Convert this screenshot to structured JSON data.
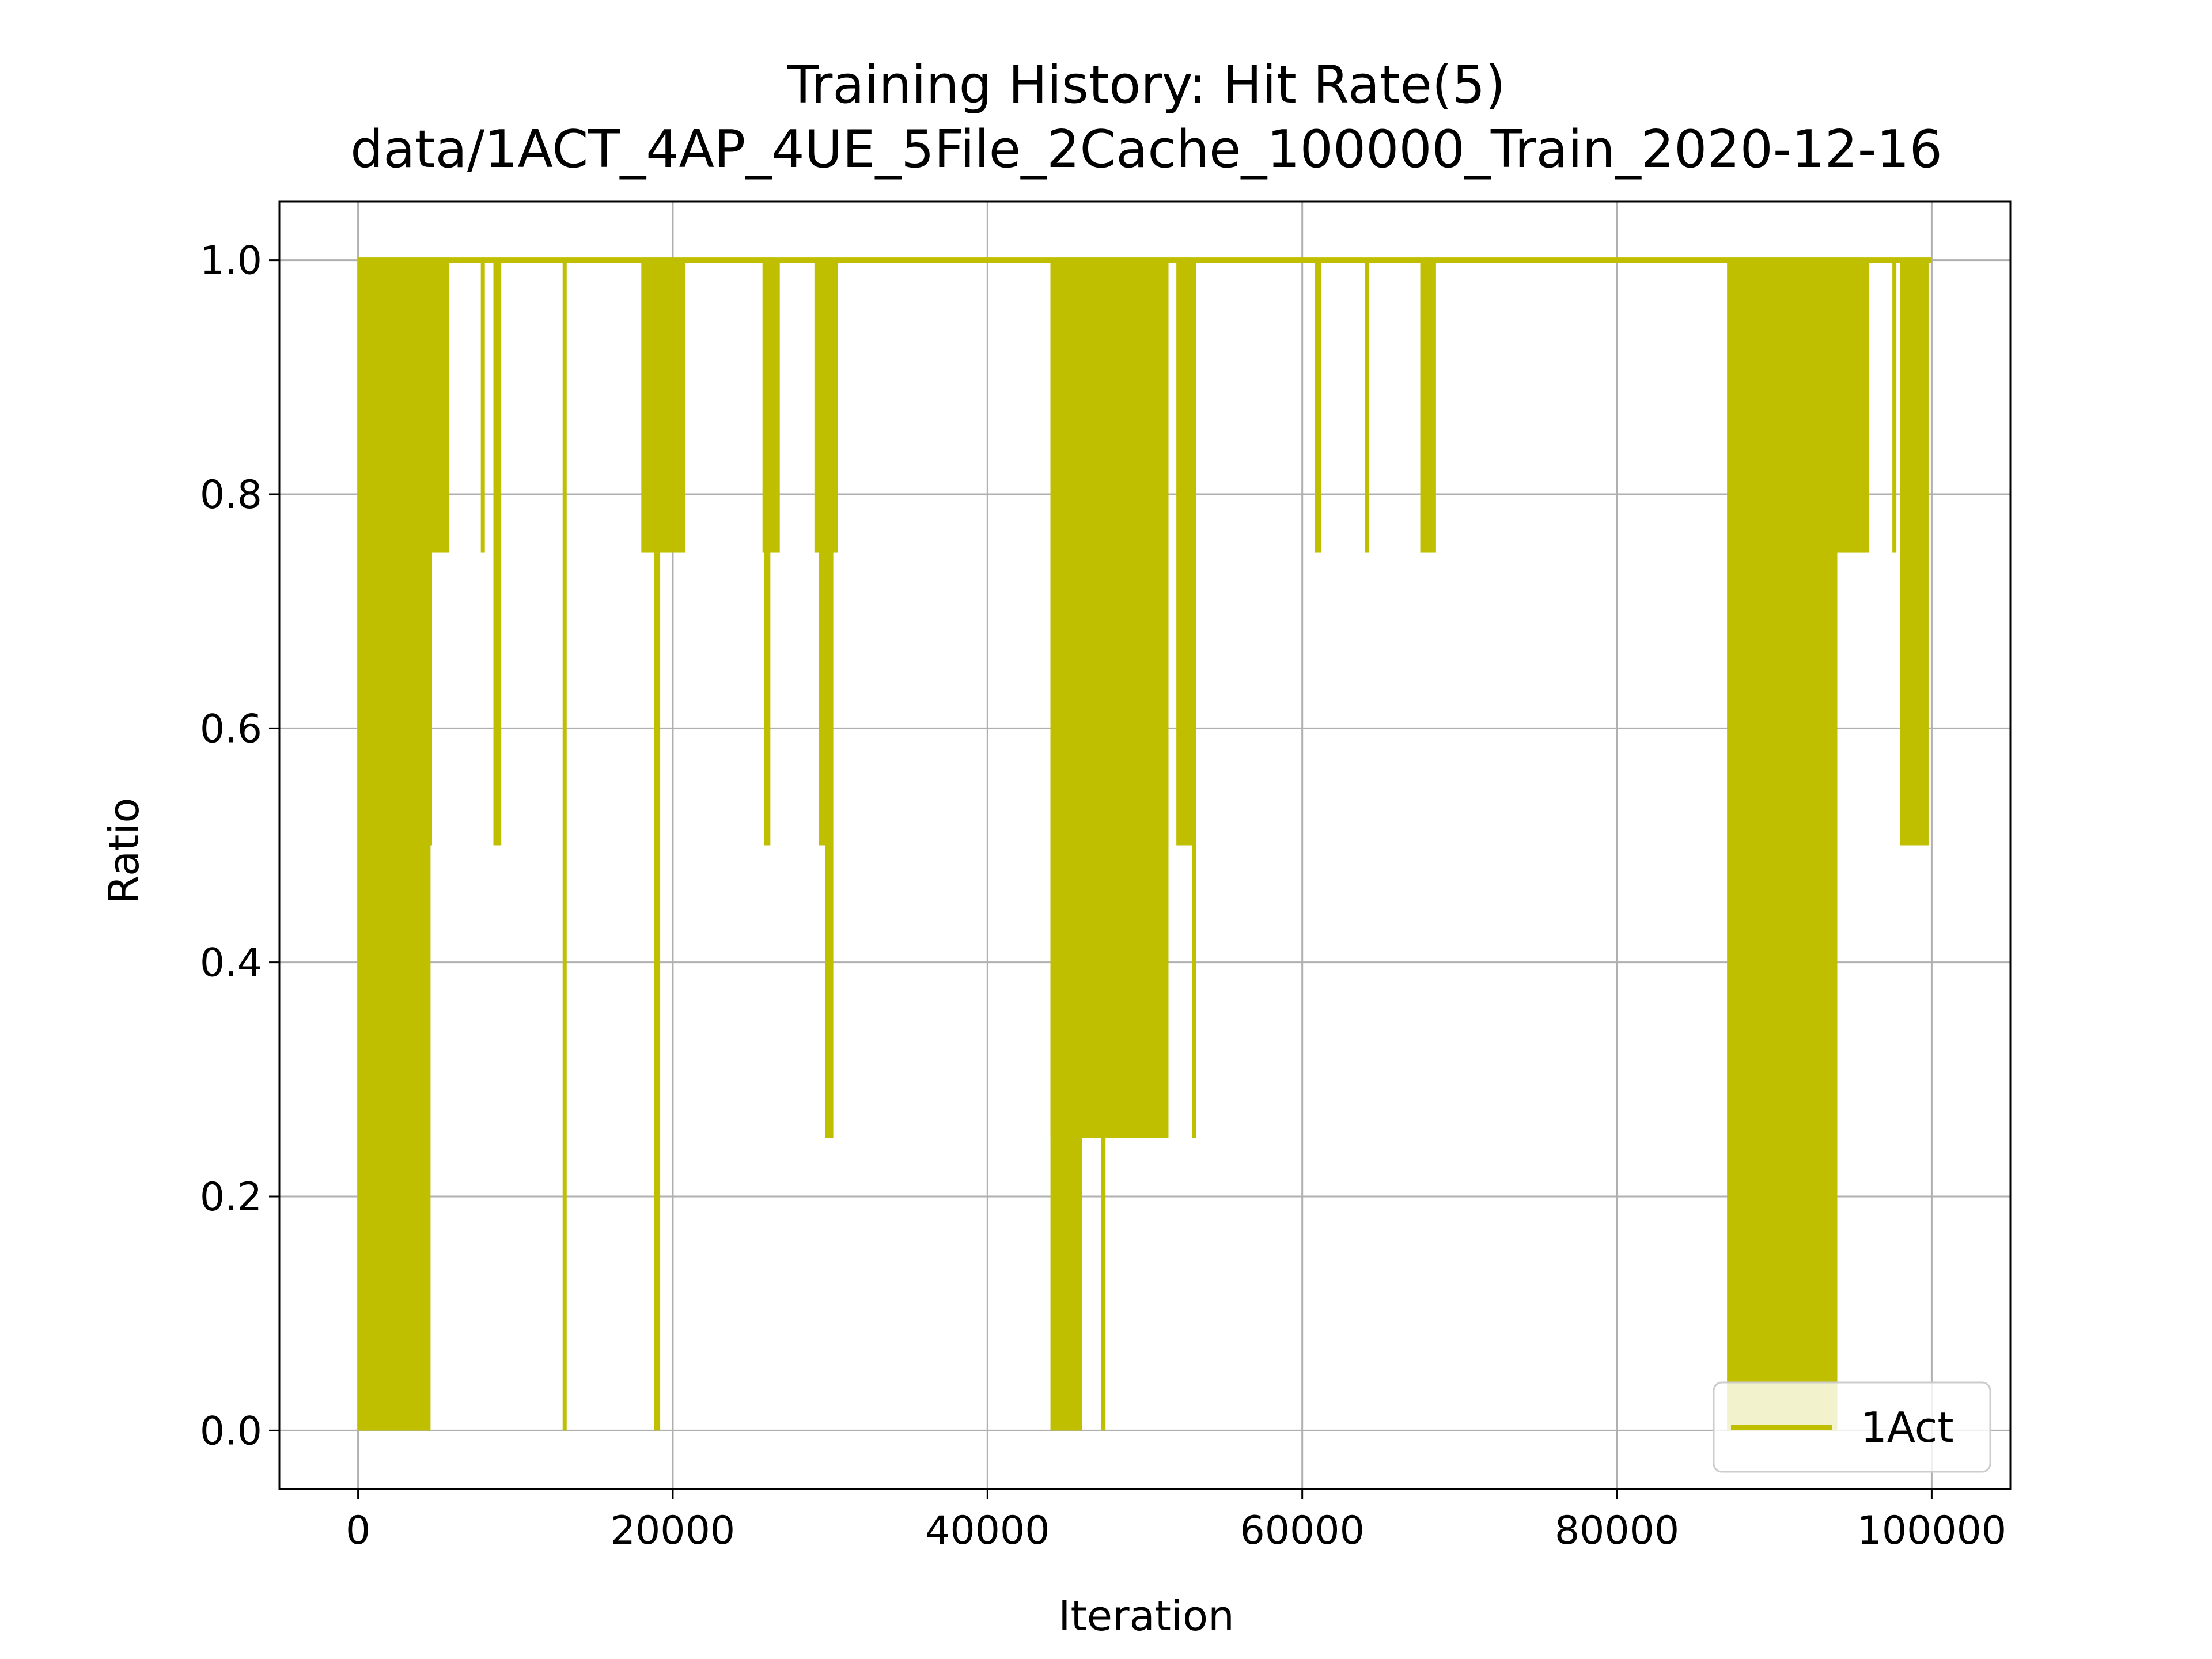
{
  "chart_data": {
    "type": "line",
    "title": "Training History: Hit Rate(5)",
    "subtitle": "data/1ACT_4AP_4UE_5File_2Cache_100000_Train_2020-12-16",
    "xlabel": "Iteration",
    "ylabel": "Ratio",
    "xlim": [
      -5000,
      105000
    ],
    "ylim": [
      -0.05,
      1.05
    ],
    "xticks": [
      0,
      20000,
      40000,
      60000,
      80000,
      100000
    ],
    "xtick_labels": [
      "0",
      "20000",
      "40000",
      "60000",
      "80000",
      "100000"
    ],
    "yticks": [
      0.0,
      0.2,
      0.4,
      0.6,
      0.8,
      1.0
    ],
    "ytick_labels": [
      "0.0",
      "0.2",
      "0.4",
      "0.6",
      "0.8",
      "1.0"
    ],
    "grid": true,
    "legend_position": "lower-right",
    "series": [
      {
        "name": "1Act",
        "color": "#bfbf00",
        "baseline": 1.0,
        "x_range": [
          0,
          100000
        ],
        "dense_bands": [
          {
            "x": [
              0,
              4600
            ],
            "min": 0.0
          },
          {
            "x": [
              4600,
              5800
            ],
            "min": 0.75
          },
          {
            "x": [
              18000,
              20800
            ],
            "min": 0.75
          },
          {
            "x": [
              25700,
              26800
            ],
            "min": 0.75
          },
          {
            "x": [
              29000,
              30500
            ],
            "min": 0.75
          },
          {
            "x": [
              44000,
              51500
            ],
            "min": 0.25
          },
          {
            "x": [
              52000,
              53000
            ],
            "min": 0.5
          },
          {
            "x": [
              87000,
              94000
            ],
            "min": 0.0
          },
          {
            "x": [
              94000,
              96000
            ],
            "min": 0.75
          },
          {
            "x": [
              98000,
              99800
            ],
            "min": 0.5
          }
        ],
        "dips": [
          {
            "x": [
              0,
              4600
            ],
            "y": 0.0
          },
          {
            "x": [
              4200,
              4700
            ],
            "y": 0.5
          },
          {
            "x": [
              7800,
              8000
            ],
            "y": 0.75
          },
          {
            "x": [
              8600,
              9100
            ],
            "y": 0.5
          },
          {
            "x": [
              13000,
              13200
            ],
            "y": 0.0
          },
          {
            "x": [
              18800,
              19200
            ],
            "y": 0.0
          },
          {
            "x": [
              25800,
              26200
            ],
            "y": 0.5
          },
          {
            "x": [
              29700,
              30200
            ],
            "y": 0.25
          },
          {
            "x": [
              29300,
              29700
            ],
            "y": 0.5
          },
          {
            "x": [
              44000,
              46000
            ],
            "y": 0.0
          },
          {
            "x": [
              47200,
              47500
            ],
            "y": 0.0
          },
          {
            "x": [
              46200,
              48500
            ],
            "y": 0.25
          },
          {
            "x": [
              48800,
              49600
            ],
            "y": 0.25
          },
          {
            "x": [
              50100,
              50300
            ],
            "y": 0.25
          },
          {
            "x": [
              48000,
              51500
            ],
            "y": 0.5
          },
          {
            "x": [
              52500,
              52800
            ],
            "y": 0.5
          },
          {
            "x": [
              53000,
              53200
            ],
            "y": 0.25
          },
          {
            "x": [
              60800,
              61200
            ],
            "y": 0.75
          },
          {
            "x": [
              64000,
              64200
            ],
            "y": 0.75
          },
          {
            "x": [
              67500,
              68500
            ],
            "y": 0.75
          },
          {
            "x": [
              87000,
              89000
            ],
            "y": 0.0
          },
          {
            "x": [
              89300,
              89500
            ],
            "y": 0.0
          },
          {
            "x": [
              89000,
              90000
            ],
            "y": 0.25
          },
          {
            "x": [
              91700,
              91900
            ],
            "y": 0.25
          },
          {
            "x": [
              90000,
              94000
            ],
            "y": 0.5
          },
          {
            "x": [
              94000,
              95800
            ],
            "y": 0.75
          },
          {
            "x": [
              97500,
              97700
            ],
            "y": 0.75
          },
          {
            "x": [
              98000,
              99600
            ],
            "y": 0.5
          }
        ]
      }
    ]
  }
}
